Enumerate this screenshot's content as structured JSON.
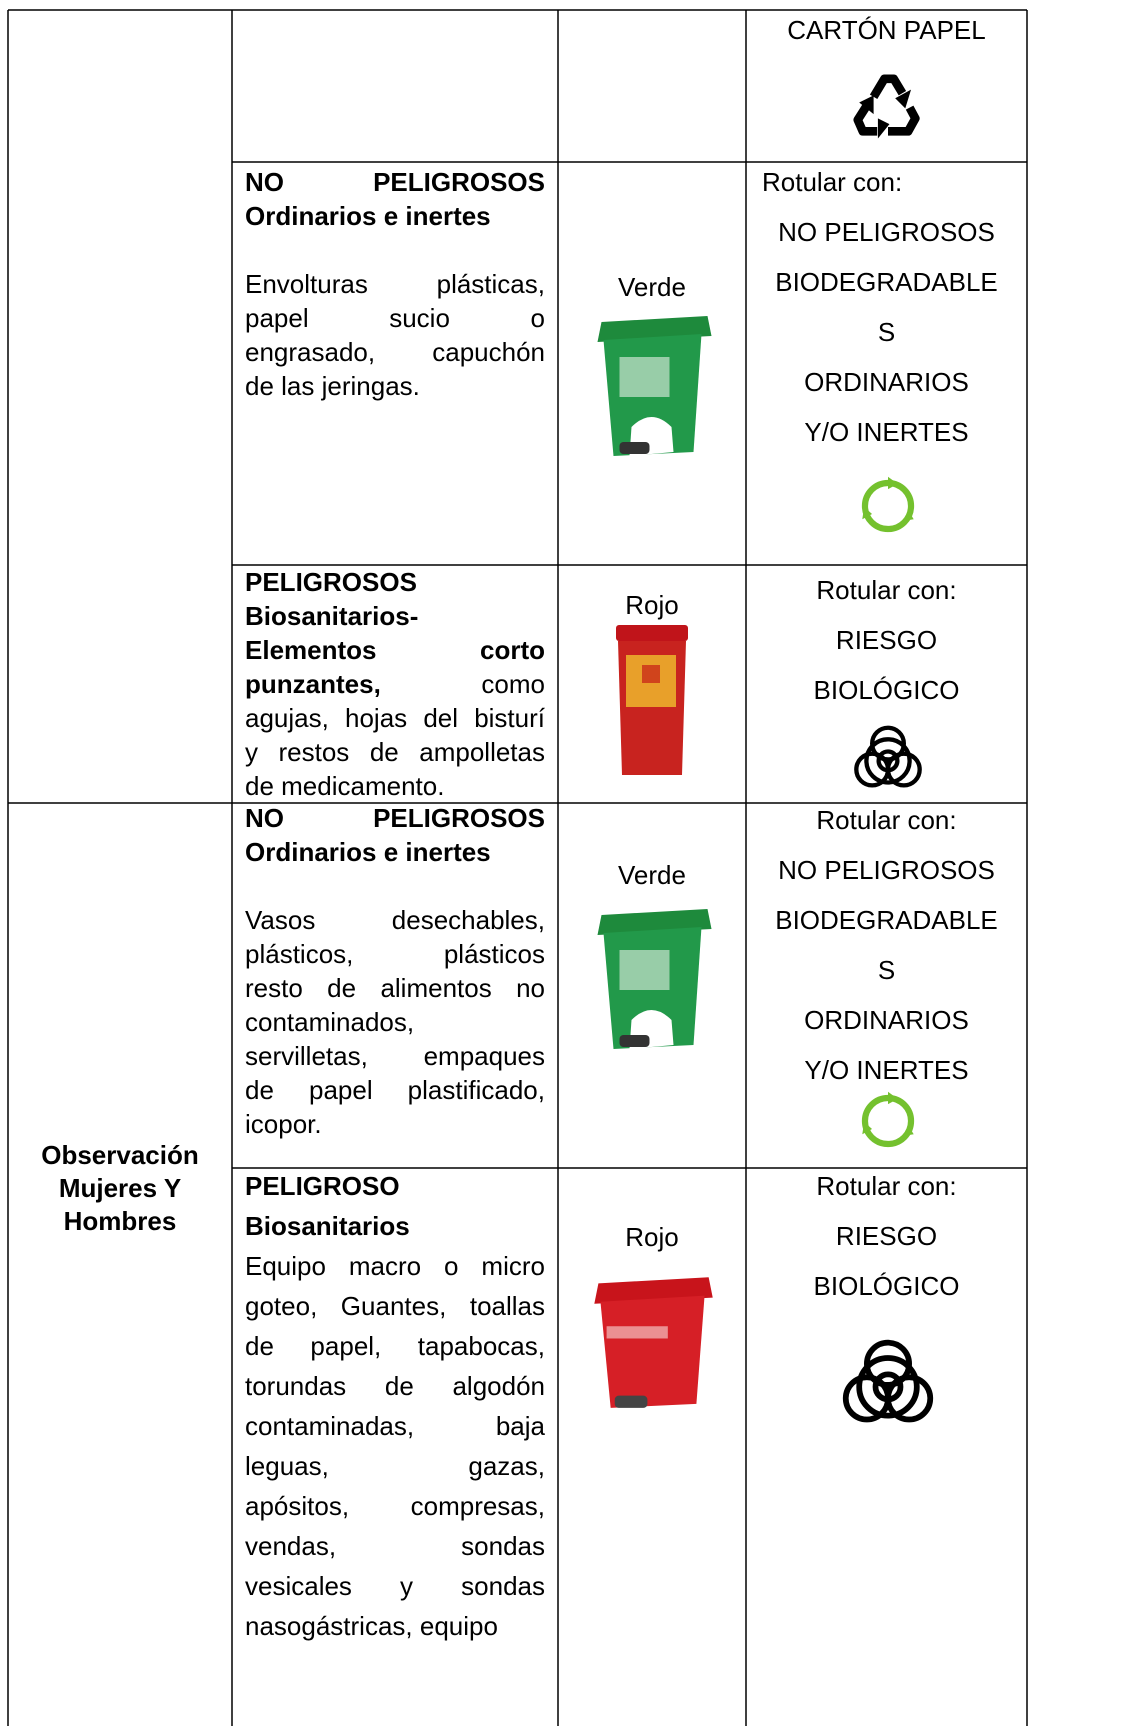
{
  "table": {
    "rows": [
      {
        "label": [
          "CARTÓN PAPEL"
        ]
      },
      {
        "waste": [
          {
            "bold": "NO PELIGROSOS"
          },
          {
            "bold": "Ordinarios e inertes"
          },
          {
            "text": "Envolturas plásticas,"
          },
          {
            "text": "papel sucio o"
          },
          {
            "text": "engrasado, capuchón"
          },
          {
            "text": "de las jeringas."
          }
        ],
        "color": "Verde",
        "label": [
          "Rotular con:",
          "NO PELIGROSOS",
          "BIODEGRADABLE",
          "S",
          "ORDINARIOS",
          "Y/O INERTES"
        ]
      },
      {
        "waste": [
          {
            "bold": "PELIGROSOS"
          },
          {
            "bold": "Biosanitarios-"
          },
          {
            "bold": "Elementos corto"
          },
          {
            "bold": "punzantes,",
            "text": "como"
          },
          {
            "text": "agujas, hojas del bisturí"
          },
          {
            "text": "y restos de ampolletas"
          },
          {
            "text": "de medicamento."
          }
        ],
        "color": "Rojo",
        "label": [
          "Rotular con:",
          "RIESGO",
          "BIOLÓGICO"
        ]
      },
      {
        "group": [
          "Observación",
          "Mujeres Y",
          "Hombres"
        ],
        "waste": [
          {
            "bold": "NO PELIGROSOS"
          },
          {
            "bold": "Ordinarios e inertes"
          },
          {
            "text": "Vasos desechables,"
          },
          {
            "text": "plásticos, plásticos"
          },
          {
            "text": "resto de alimentos no"
          },
          {
            "text": "contaminados,"
          },
          {
            "text": "servilletas, empaques"
          },
          {
            "text": "de papel plastificado,"
          },
          {
            "text": "icopor."
          }
        ],
        "color": "Verde",
        "label": [
          "Rotular con:",
          "NO PELIGROSOS",
          "BIODEGRADABLE",
          "S",
          "ORDINARIOS",
          "Y/O INERTES"
        ]
      },
      {
        "waste": [
          {
            "bold": "PELIGROSO"
          },
          {
            "bold": "Biosanitarios"
          },
          {
            "text": "Equipo macro o micro"
          },
          {
            "text": "goteo, Guantes, toallas"
          },
          {
            "text": "de papel, tapabocas,"
          },
          {
            "text": "torundas de algodón"
          },
          {
            "text": "contaminadas, baja"
          },
          {
            "text": "leguas, gazas,"
          },
          {
            "text": "apósitos, compresas,"
          },
          {
            "text": "vendas, sondas"
          },
          {
            "text": "vesicales y sondas"
          },
          {
            "text": "nasogástricas, equipo"
          }
        ],
        "color": "Rojo",
        "label": [
          "Rotular con:",
          "RIESGO",
          "BIOLÓGICO"
        ]
      }
    ]
  }
}
